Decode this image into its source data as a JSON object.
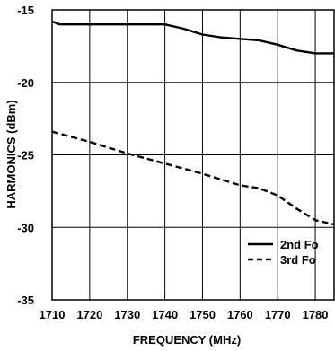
{
  "chart_data": {
    "type": "line",
    "title": "",
    "xlabel": "FREQUENCY (MHz)",
    "ylabel": "HARMONICS (dBm)",
    "xlim": [
      1710,
      1785
    ],
    "ylim": [
      -35,
      -15
    ],
    "x_ticks": [
      1710,
      1720,
      1730,
      1740,
      1750,
      1760,
      1770,
      1780
    ],
    "x_tick_labels": [
      "1710",
      "1720",
      "1730",
      "1740",
      "1750",
      "1760",
      "1770",
      "1780"
    ],
    "y_ticks": [
      -15,
      -20,
      -25,
      -30,
      -35
    ],
    "y_tick_labels": [
      "-15",
      "-20",
      "-25",
      "-30",
      "-35"
    ],
    "grid": true,
    "legend_position": "bottom-right",
    "series": [
      {
        "name": "2nd Fo",
        "style": "solid",
        "color": "#000000",
        "x": [
          1710,
          1712,
          1720,
          1730,
          1740,
          1745,
          1750,
          1755,
          1760,
          1765,
          1770,
          1775,
          1780,
          1785
        ],
        "y": [
          -15.8,
          -16.0,
          -16.0,
          -16.0,
          -16.0,
          -16.3,
          -16.7,
          -16.9,
          -17.0,
          -17.1,
          -17.4,
          -17.8,
          -18.0,
          -18.0
        ]
      },
      {
        "name": "3rd Fo",
        "style": "dashed",
        "color": "#000000",
        "x": [
          1710,
          1720,
          1730,
          1740,
          1750,
          1760,
          1765,
          1770,
          1775,
          1780,
          1785
        ],
        "y": [
          -23.4,
          -24.1,
          -24.9,
          -25.6,
          -26.3,
          -27.1,
          -27.3,
          -27.8,
          -28.7,
          -29.5,
          -29.8
        ]
      }
    ]
  }
}
